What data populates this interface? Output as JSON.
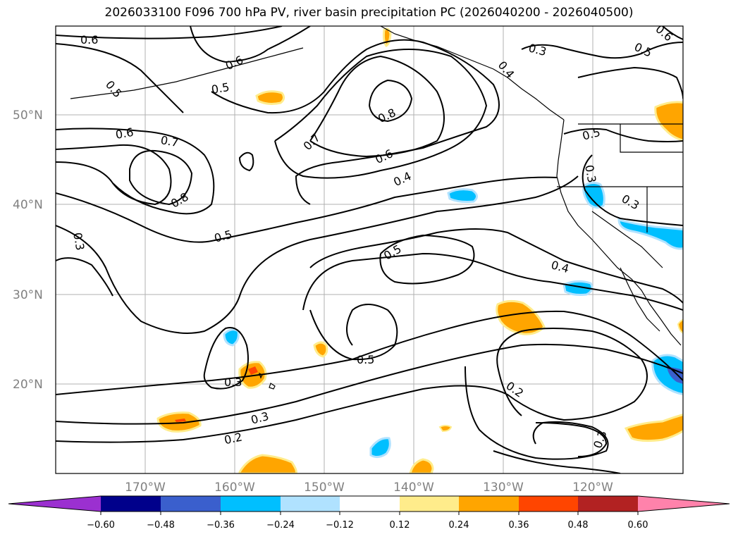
{
  "title": "2026033100 F096 700 hPa PV, river basin precipitation PC (2026040200 - 2026040500)",
  "colors": {
    "neg_060": "#9b30d0",
    "neg_048": "#00008b",
    "neg_036": "#3a5fcd",
    "neg_024": "#00bfff",
    "neg_012": "#b0e2ff",
    "zero": "#ffffff",
    "pos_012": "#ffec8b",
    "pos_024": "#ffa500",
    "pos_036": "#ff4500",
    "pos_048": "#b22222",
    "pos_060": "#ff82ab",
    "grid": "#b0b0b0",
    "contour": "#000000"
  },
  "map": {
    "lat_labels": [
      "50°N",
      "40°N",
      "30°N",
      "20°N"
    ],
    "lon_labels": [
      "170°W",
      "160°W",
      "150°W",
      "140°W",
      "130°W",
      "120°W"
    ]
  },
  "contour_labels": [
    {
      "text": "0.6"
    },
    {
      "text": "0.5"
    },
    {
      "text": "0.6"
    },
    {
      "text": "0.5"
    },
    {
      "text": "0.6"
    },
    {
      "text": "0.7"
    },
    {
      "text": "0.8"
    },
    {
      "text": "0.5"
    },
    {
      "text": "0.3"
    },
    {
      "text": "0.7"
    },
    {
      "text": "0.8"
    },
    {
      "text": "0.6"
    },
    {
      "text": "0.4"
    },
    {
      "text": "0.3"
    },
    {
      "text": "0.5"
    },
    {
      "text": "0.6"
    },
    {
      "text": "0.4"
    },
    {
      "text": "0.5"
    },
    {
      "text": "0.3"
    },
    {
      "text": "0.3"
    },
    {
      "text": "0.4"
    },
    {
      "text": "0.5"
    },
    {
      "text": "0.3"
    },
    {
      "text": "0.3"
    },
    {
      "text": "0.2"
    },
    {
      "text": "0.2"
    },
    {
      "text": "0.3"
    }
  ],
  "colorbar": {
    "ticks": [
      "−0.60",
      "−0.48",
      "−0.36",
      "−0.24",
      "−0.12",
      "0.12",
      "0.24",
      "0.36",
      "0.48",
      "0.60"
    ]
  }
}
